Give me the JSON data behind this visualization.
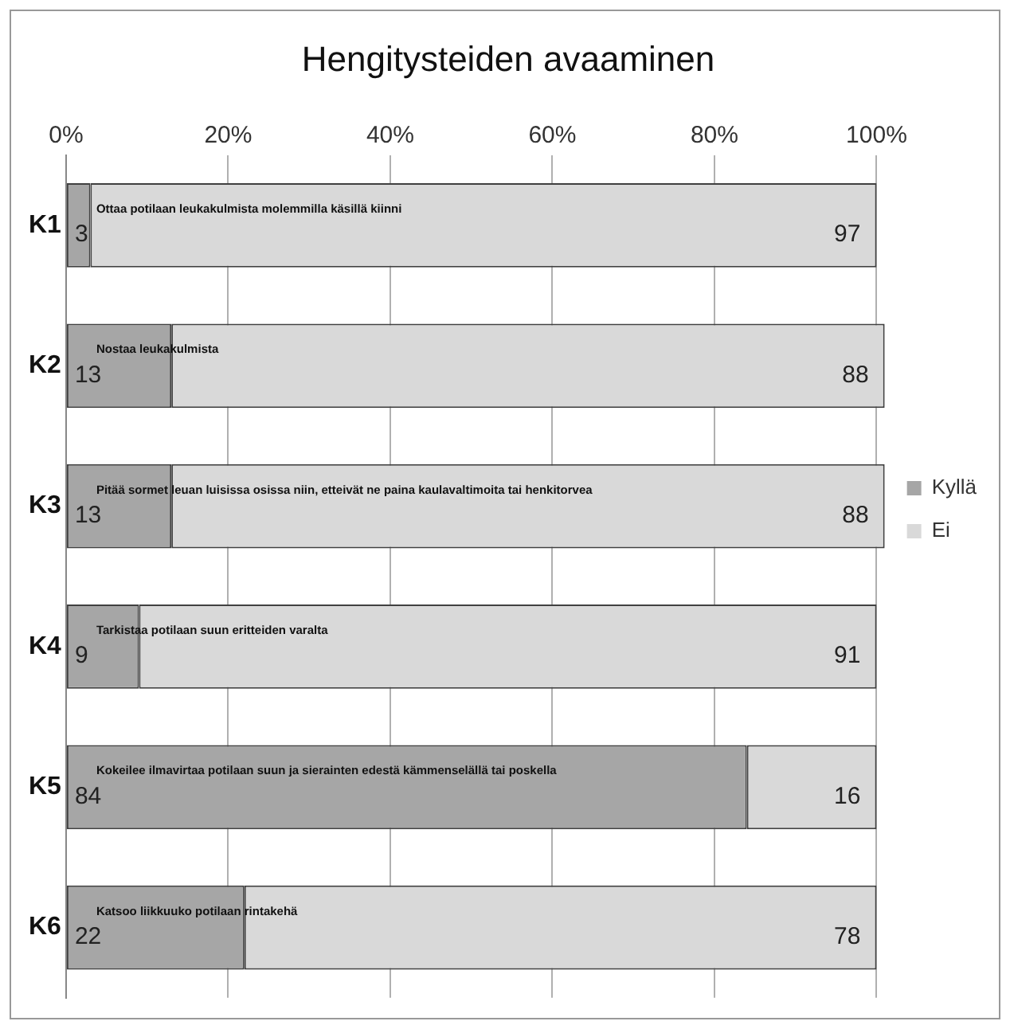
{
  "chart_data": {
    "type": "bar",
    "orientation": "horizontal",
    "stacked": true,
    "title": "Hengitysteiden avaaminen",
    "categories": [
      "K1",
      "K2",
      "K3",
      "K4",
      "K5",
      "K6"
    ],
    "series": [
      {
        "name": "Kyllä",
        "color": "#a6a6a6",
        "values": [
          3,
          13,
          13,
          9,
          84,
          22
        ]
      },
      {
        "name": "Ei",
        "color": "#d9d9d9",
        "values": [
          97,
          88,
          88,
          91,
          16,
          78
        ]
      }
    ],
    "xlim": [
      0,
      101
    ],
    "xticks": [
      {
        "value": 0,
        "label": "0%"
      },
      {
        "value": 20,
        "label": "20%"
      },
      {
        "value": 40,
        "label": "40%"
      },
      {
        "value": 60,
        "label": "60%"
      },
      {
        "value": 80,
        "label": "80%"
      },
      {
        "value": 100,
        "label": "100%"
      }
    ],
    "grid": "x",
    "legend": "right",
    "data_labels": true,
    "annotations": [
      "Ottaa potilaan leukakulmista molemmilla käsillä kiinni",
      "Nostaa leukakulmista",
      "Pitää sormet leuan luisissa osissa niin, etteivät ne paina kaulavaltimoita tai henkitorvea",
      "Tarkistaa potilaan suun eritteiden varalta",
      "Kokeilee ilmavirtaa potilaan suun ja sierainten edestä kämmenselällä tai poskella",
      "Katsoo liikkuuko potilaan rintakehä"
    ]
  }
}
